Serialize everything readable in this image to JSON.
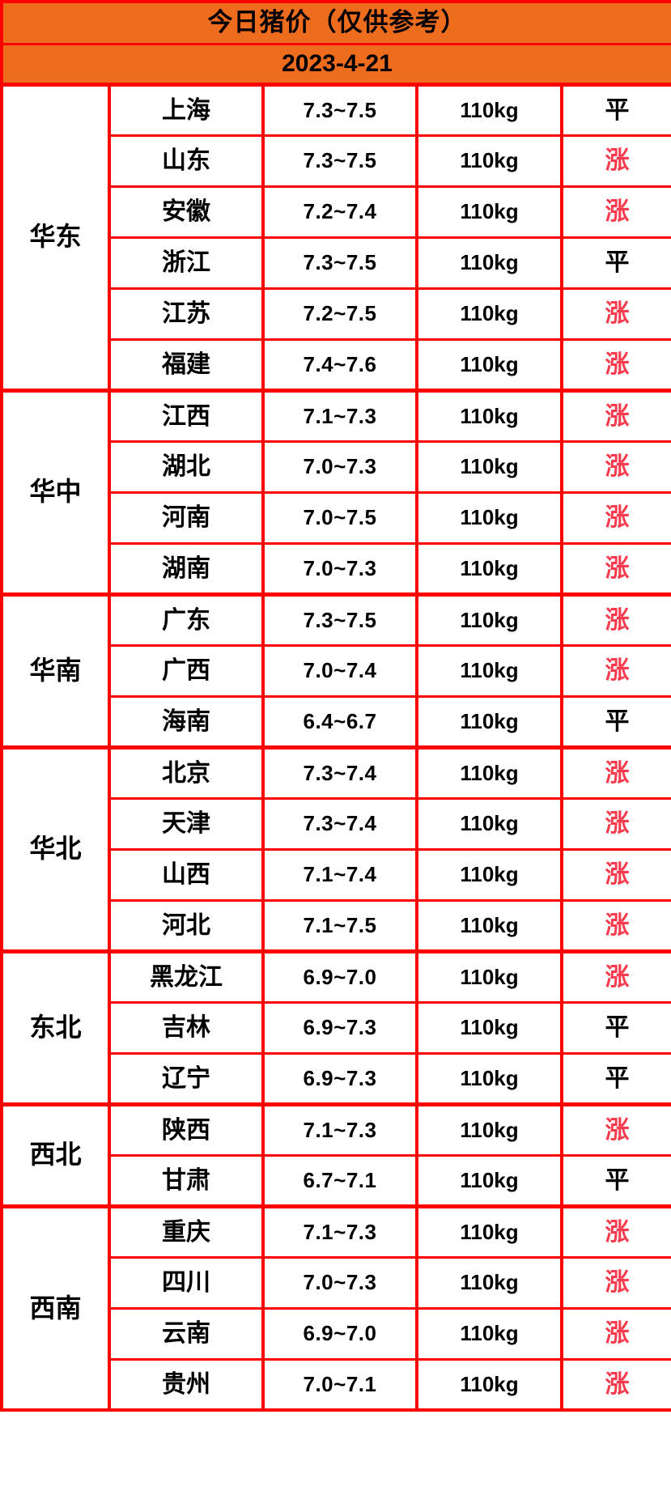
{
  "colors": {
    "header_bg": "#ee6c1e",
    "grid_border": "#fd0000",
    "trend_up_text": "#fa3b4d",
    "trend_flat_text": "#000000"
  },
  "chart_data": {
    "type": "table",
    "title": "今日猪价（仅供参考）",
    "date": "2023-4-21",
    "columns": [
      "region",
      "province",
      "price_range",
      "weight",
      "trend"
    ],
    "legend": {
      "up_label": "涨",
      "flat_label": "平"
    },
    "regions": [
      {
        "name": "华东",
        "rows": [
          {
            "province": "上海",
            "price": "7.3~7.5",
            "weight": "110kg",
            "status": "平",
            "trend": "flat"
          },
          {
            "province": "山东",
            "price": "7.3~7.5",
            "weight": "110kg",
            "status": "涨",
            "trend": "up"
          },
          {
            "province": "安徽",
            "price": "7.2~7.4",
            "weight": "110kg",
            "status": "涨",
            "trend": "up"
          },
          {
            "province": "浙江",
            "price": "7.3~7.5",
            "weight": "110kg",
            "status": "平",
            "trend": "flat"
          },
          {
            "province": "江苏",
            "price": "7.2~7.5",
            "weight": "110kg",
            "status": "涨",
            "trend": "up"
          },
          {
            "province": "福建",
            "price": "7.4~7.6",
            "weight": "110kg",
            "status": "涨",
            "trend": "up"
          }
        ]
      },
      {
        "name": "华中",
        "rows": [
          {
            "province": "江西",
            "price": "7.1~7.3",
            "weight": "110kg",
            "status": "涨",
            "trend": "up"
          },
          {
            "province": "湖北",
            "price": "7.0~7.3",
            "weight": "110kg",
            "status": "涨",
            "trend": "up"
          },
          {
            "province": "河南",
            "price": "7.0~7.5",
            "weight": "110kg",
            "status": "涨",
            "trend": "up"
          },
          {
            "province": "湖南",
            "price": "7.0~7.3",
            "weight": "110kg",
            "status": "涨",
            "trend": "up"
          }
        ]
      },
      {
        "name": "华南",
        "rows": [
          {
            "province": "广东",
            "price": "7.3~7.5",
            "weight": "110kg",
            "status": "涨",
            "trend": "up"
          },
          {
            "province": "广西",
            "price": "7.0~7.4",
            "weight": "110kg",
            "status": "涨",
            "trend": "up"
          },
          {
            "province": "海南",
            "price": "6.4~6.7",
            "weight": "110kg",
            "status": "平",
            "trend": "flat"
          }
        ]
      },
      {
        "name": "华北",
        "rows": [
          {
            "province": "北京",
            "price": "7.3~7.4",
            "weight": "110kg",
            "status": "涨",
            "trend": "up"
          },
          {
            "province": "天津",
            "price": "7.3~7.4",
            "weight": "110kg",
            "status": "涨",
            "trend": "up"
          },
          {
            "province": "山西",
            "price": "7.1~7.4",
            "weight": "110kg",
            "status": "涨",
            "trend": "up"
          },
          {
            "province": "河北",
            "price": "7.1~7.5",
            "weight": "110kg",
            "status": "涨",
            "trend": "up"
          }
        ]
      },
      {
        "name": "东北",
        "rows": [
          {
            "province": "黑龙江",
            "price": "6.9~7.0",
            "weight": "110kg",
            "status": "涨",
            "trend": "up"
          },
          {
            "province": "吉林",
            "price": "6.9~7.3",
            "weight": "110kg",
            "status": "平",
            "trend": "flat"
          },
          {
            "province": "辽宁",
            "price": "6.9~7.3",
            "weight": "110kg",
            "status": "平",
            "trend": "flat"
          }
        ]
      },
      {
        "name": "西北",
        "rows": [
          {
            "province": "陕西",
            "price": "7.1~7.3",
            "weight": "110kg",
            "status": "涨",
            "trend": "up"
          },
          {
            "province": "甘肃",
            "price": "6.7~7.1",
            "weight": "110kg",
            "status": "平",
            "trend": "flat"
          }
        ]
      },
      {
        "name": "西南",
        "rows": [
          {
            "province": "重庆",
            "price": "7.1~7.3",
            "weight": "110kg",
            "status": "涨",
            "trend": "up"
          },
          {
            "province": "四川",
            "price": "7.0~7.3",
            "weight": "110kg",
            "status": "涨",
            "trend": "up"
          },
          {
            "province": "云南",
            "price": "6.9~7.0",
            "weight": "110kg",
            "status": "涨",
            "trend": "up"
          },
          {
            "province": "贵州",
            "price": "7.0~7.1",
            "weight": "110kg",
            "status": "涨",
            "trend": "up"
          }
        ]
      }
    ]
  }
}
